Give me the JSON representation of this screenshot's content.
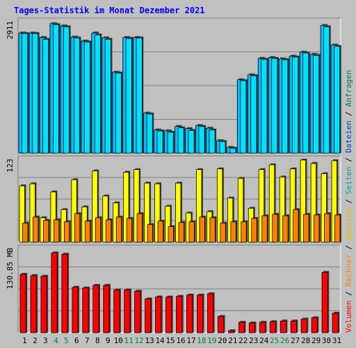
{
  "title": "Tages-Statistik im Monat Dezember 2021",
  "colors": {
    "background": "#c0c0c0",
    "plot_bg": "#c0c0c0",
    "title": "#0000ff",
    "hits": "#00c0ff",
    "files": "#00e0ff",
    "visits": "#ffff00",
    "sites": "#ff8000",
    "volume": "#ff0000",
    "weekend_label": "#008040",
    "axis_label": "#000000"
  },
  "chart_data": [
    {
      "type": "bar",
      "panel": "top",
      "ytick_label": "2911",
      "ymax": 2911,
      "categories": [
        "1",
        "2",
        "3",
        "4",
        "5",
        "6",
        "7",
        "8",
        "9",
        "10",
        "11",
        "12",
        "13",
        "14",
        "15",
        "16",
        "17",
        "18",
        "19",
        "20",
        "21",
        "22",
        "23",
        "24",
        "25",
        "26",
        "27",
        "28",
        "29",
        "30",
        "31"
      ],
      "weekend_days": [
        "4",
        "5",
        "11",
        "12",
        "18",
        "19",
        "25",
        "26"
      ],
      "series": [
        {
          "name": "Anfragen",
          "values": [
            2700,
            2700,
            2600,
            2911,
            2860,
            2610,
            2520,
            2700,
            2590,
            1820,
            2600,
            2600,
            900,
            520,
            500,
            600,
            550,
            620,
            560,
            280,
            130,
            1650,
            1760,
            2130,
            2150,
            2120,
            2180,
            2270,
            2220,
            2870,
            2430
          ]
        },
        {
          "name": "Dateien",
          "values": [
            2690,
            2690,
            2560,
            2890,
            2840,
            2590,
            2500,
            2660,
            2560,
            1800,
            2580,
            2590,
            880,
            500,
            470,
            570,
            510,
            600,
            520,
            260,
            110,
            1630,
            1740,
            2110,
            2130,
            2100,
            2160,
            2250,
            2200,
            2840,
            2400
          ]
        }
      ]
    },
    {
      "type": "bar",
      "panel": "middle",
      "ytick_label": "123",
      "ymax": 123,
      "categories": [
        "1",
        "2",
        "3",
        "4",
        "5",
        "6",
        "7",
        "8",
        "9",
        "10",
        "11",
        "12",
        "13",
        "14",
        "15",
        "16",
        "17",
        "18",
        "19",
        "20",
        "21",
        "22",
        "23",
        "24",
        "25",
        "26",
        "27",
        "28",
        "29",
        "30",
        "31"
      ],
      "series": [
        {
          "name": "Besuche",
          "values": [
            83,
            86,
            36,
            74,
            48,
            92,
            52,
            105,
            68,
            58,
            103,
            107,
            87,
            86,
            53,
            87,
            43,
            107,
            45,
            108,
            65,
            94,
            50,
            107,
            114,
            96,
            108,
            121,
            116,
            101,
            120
          ]
        },
        {
          "name": "Seiten",
          "values": [
            28,
            37,
            32,
            33,
            30,
            42,
            31,
            36,
            33,
            37,
            35,
            42,
            26,
            31,
            23,
            29,
            30,
            37,
            36,
            28,
            30,
            30,
            35,
            39,
            41,
            39,
            48,
            41,
            40,
            42,
            40
          ]
        }
      ]
    },
    {
      "type": "bar",
      "panel": "bottom",
      "ytick_label": "130.85 MB",
      "ymax": 130.85,
      "categories": [
        "1",
        "2",
        "3",
        "4",
        "5",
        "6",
        "7",
        "8",
        "9",
        "10",
        "11",
        "12",
        "13",
        "14",
        "15",
        "16",
        "17",
        "18",
        "19",
        "20",
        "21",
        "22",
        "23",
        "24",
        "25",
        "26",
        "27",
        "28",
        "29",
        "30",
        "31"
      ],
      "series": [
        {
          "name": "Volumen",
          "values": [
            90,
            88,
            87,
            123,
            121,
            70,
            69,
            73,
            73,
            66,
            66,
            64,
            52,
            55,
            55,
            56,
            58,
            58,
            60,
            25,
            3,
            16,
            15,
            16,
            17,
            18,
            18,
            21,
            23,
            93,
            30
          ]
        }
      ]
    }
  ],
  "legend": {
    "top": [
      "Anfragen",
      "Dateien",
      "Seiten",
      "Besuche",
      "Rechner",
      "Volumen"
    ],
    "separator": "/"
  }
}
